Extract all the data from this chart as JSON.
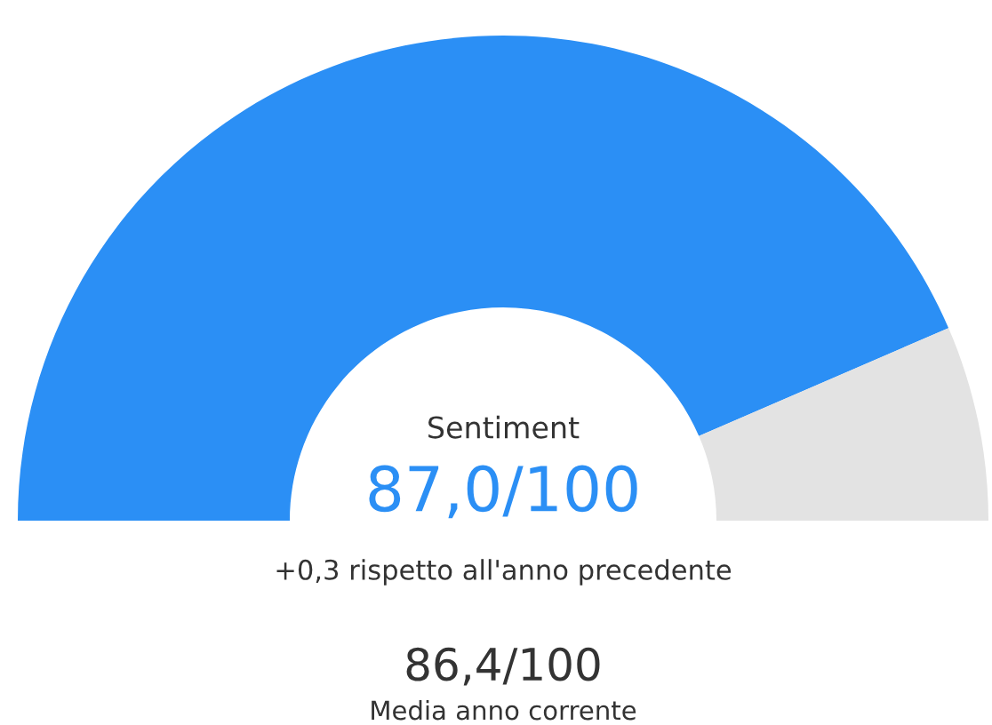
{
  "chart_data": {
    "type": "donut",
    "title": "Sentiment",
    "subtitle": "87,0/100",
    "categories": [
      null,
      null
    ],
    "values": [
      87,
      13
    ],
    "colors": [
      "#2b8ff5",
      "#e3e3e3"
    ],
    "annotations": [
      "+0,3 rispetto all'anno precedente",
      "86,4/100",
      "Media anno corrente"
    ]
  }
}
